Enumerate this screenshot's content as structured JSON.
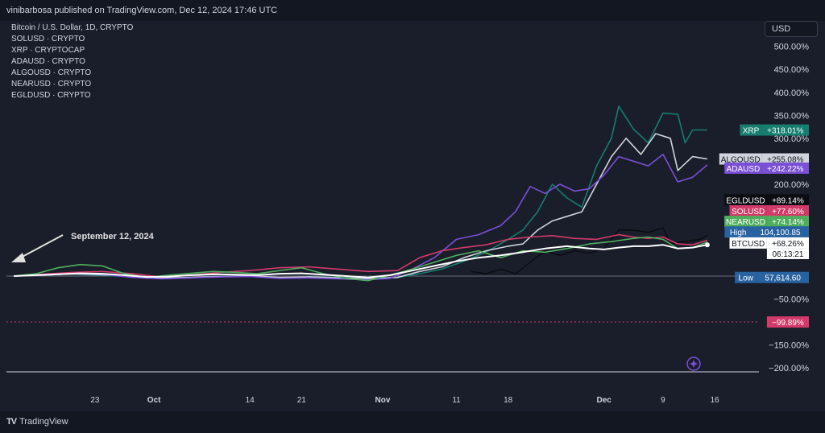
{
  "header": {
    "publisher": "vinibarbosa published on TradingView.com, Dec 12, 2024 17:46 UTC"
  },
  "legend": {
    "items": [
      "Bitcoin / U.S. Dollar, 1D, CRYPTO",
      "SOLUSD · CRYPTO",
      "XRP · CRYPTOCAP",
      "ADAUSD · CRYPTO",
      "ALGOUSD · CRYPTO",
      "NEARUSD · CRYPTO",
      "EGLDUSD · CRYPTO"
    ]
  },
  "currency_button": "USD",
  "annotation": {
    "text": "September 12, 2024"
  },
  "brand": {
    "name": "TradingView",
    "logo": "TV"
  },
  "chart_data": {
    "type": "line",
    "y_unit": "percent change",
    "ylim": [
      -210,
      520
    ],
    "y_ticks": [
      -200,
      -150,
      -100,
      -50,
      0,
      50,
      100,
      150,
      200,
      250,
      300,
      350,
      400,
      450,
      500
    ],
    "y_tick_labels": [
      "−200.00%",
      "−150.00%",
      "−100.00%",
      "−50.00%",
      "",
      "",
      "",
      "",
      "200.00%",
      "250.00%",
      "300.00%",
      "350.00%",
      "400.00%",
      "450.00%",
      "500.00%"
    ],
    "x_ticks": [
      {
        "day": 11,
        "label": "23"
      },
      {
        "day": 19,
        "label": "Oct"
      },
      {
        "day": 32,
        "label": "14"
      },
      {
        "day": 39,
        "label": "21"
      },
      {
        "day": 50,
        "label": "Nov"
      },
      {
        "day": 60,
        "label": "11"
      },
      {
        "day": 67,
        "label": "18"
      },
      {
        "day": 80,
        "label": "Dec"
      },
      {
        "day": 88,
        "label": "9"
      },
      {
        "day": 95,
        "label": "16"
      }
    ],
    "xlim": [
      -1,
      101
    ],
    "series": [
      {
        "name": "XRP",
        "color": "#167d6f",
        "values": [
          [
            0,
            0
          ],
          [
            4,
            3
          ],
          [
            8,
            4
          ],
          [
            12,
            2
          ],
          [
            16,
            -2
          ],
          [
            20,
            -5
          ],
          [
            24,
            -3
          ],
          [
            28,
            -1
          ],
          [
            32,
            0
          ],
          [
            36,
            -4
          ],
          [
            40,
            -2
          ],
          [
            44,
            -3
          ],
          [
            48,
            -5
          ],
          [
            52,
            -3
          ],
          [
            55,
            5
          ],
          [
            58,
            15
          ],
          [
            61,
            32
          ],
          [
            64,
            52
          ],
          [
            67,
            80
          ],
          [
            69,
            100
          ],
          [
            71,
            140
          ],
          [
            73,
            200
          ],
          [
            75,
            170
          ],
          [
            77,
            150
          ],
          [
            79,
            240
          ],
          [
            81,
            300
          ],
          [
            82,
            370
          ],
          [
            84,
            320
          ],
          [
            86,
            290
          ],
          [
            88,
            355
          ],
          [
            90,
            352
          ],
          [
            91,
            290
          ],
          [
            92,
            318
          ],
          [
            94,
            318
          ]
        ]
      },
      {
        "name": "ALGOUSD",
        "color": "#d1d4dc",
        "values": [
          [
            0,
            0
          ],
          [
            4,
            2
          ],
          [
            8,
            5
          ],
          [
            12,
            3
          ],
          [
            16,
            0
          ],
          [
            20,
            -4
          ],
          [
            24,
            -3
          ],
          [
            28,
            -1
          ],
          [
            32,
            0
          ],
          [
            36,
            -3
          ],
          [
            40,
            -2
          ],
          [
            44,
            -4
          ],
          [
            48,
            -6
          ],
          [
            52,
            -3
          ],
          [
            55,
            10
          ],
          [
            58,
            20
          ],
          [
            61,
            40
          ],
          [
            64,
            55
          ],
          [
            67,
            65
          ],
          [
            69,
            70
          ],
          [
            71,
            100
          ],
          [
            73,
            120
          ],
          [
            75,
            130
          ],
          [
            77,
            140
          ],
          [
            79,
            200
          ],
          [
            81,
            260
          ],
          [
            83,
            300
          ],
          [
            85,
            265
          ],
          [
            87,
            310
          ],
          [
            89,
            300
          ],
          [
            90,
            230
          ],
          [
            92,
            260
          ],
          [
            94,
            255
          ]
        ]
      },
      {
        "name": "ADAUSD",
        "color": "#7b4fd6",
        "values": [
          [
            0,
            0
          ],
          [
            4,
            2
          ],
          [
            8,
            5
          ],
          [
            12,
            4
          ],
          [
            16,
            -3
          ],
          [
            20,
            -6
          ],
          [
            24,
            -4
          ],
          [
            28,
            -2
          ],
          [
            32,
            -1
          ],
          [
            36,
            -5
          ],
          [
            40,
            -4
          ],
          [
            44,
            -6
          ],
          [
            48,
            -8
          ],
          [
            51,
            -5
          ],
          [
            54,
            15
          ],
          [
            57,
            40
          ],
          [
            60,
            80
          ],
          [
            63,
            90
          ],
          [
            66,
            110
          ],
          [
            68,
            140
          ],
          [
            70,
            195
          ],
          [
            72,
            180
          ],
          [
            74,
            200
          ],
          [
            76,
            185
          ],
          [
            78,
            190
          ],
          [
            80,
            220
          ],
          [
            82,
            260
          ],
          [
            84,
            250
          ],
          [
            86,
            240
          ],
          [
            88,
            265
          ],
          [
            90,
            205
          ],
          [
            92,
            215
          ],
          [
            94,
            242
          ]
        ]
      },
      {
        "name": "EGLDUSD",
        "color": "#0b0d12",
        "values": [
          [
            62,
            10
          ],
          [
            64,
            5
          ],
          [
            66,
            15
          ],
          [
            68,
            5
          ],
          [
            70,
            30
          ],
          [
            72,
            55
          ],
          [
            74,
            45
          ],
          [
            76,
            55
          ],
          [
            78,
            50
          ],
          [
            80,
            60
          ],
          [
            82,
            100
          ],
          [
            84,
            100
          ],
          [
            86,
            95
          ],
          [
            88,
            105
          ],
          [
            89,
            70
          ],
          [
            91,
            75
          ],
          [
            93,
            80
          ],
          [
            94,
            89
          ]
        ]
      },
      {
        "name": "SOLUSD",
        "color": "#d23a6a",
        "values": [
          [
            0,
            0
          ],
          [
            4,
            4
          ],
          [
            8,
            8
          ],
          [
            12,
            10
          ],
          [
            16,
            5
          ],
          [
            20,
            -2
          ],
          [
            24,
            2
          ],
          [
            28,
            8
          ],
          [
            32,
            12
          ],
          [
            36,
            18
          ],
          [
            40,
            20
          ],
          [
            44,
            15
          ],
          [
            48,
            10
          ],
          [
            52,
            12
          ],
          [
            55,
            40
          ],
          [
            58,
            55
          ],
          [
            61,
            62
          ],
          [
            64,
            68
          ],
          [
            67,
            80
          ],
          [
            70,
            85
          ],
          [
            73,
            88
          ],
          [
            76,
            82
          ],
          [
            79,
            80
          ],
          [
            82,
            90
          ],
          [
            84,
            85
          ],
          [
            86,
            82
          ],
          [
            88,
            85
          ],
          [
            90,
            70
          ],
          [
            92,
            68
          ],
          [
            94,
            78
          ]
        ]
      },
      {
        "name": "NEARUSD",
        "color": "#4fae5e",
        "values": [
          [
            0,
            0
          ],
          [
            3,
            5
          ],
          [
            6,
            18
          ],
          [
            9,
            25
          ],
          [
            12,
            22
          ],
          [
            15,
            5
          ],
          [
            18,
            -3
          ],
          [
            21,
            2
          ],
          [
            24,
            6
          ],
          [
            27,
            10
          ],
          [
            30,
            8
          ],
          [
            33,
            5
          ],
          [
            36,
            12
          ],
          [
            39,
            18
          ],
          [
            42,
            5
          ],
          [
            45,
            -5
          ],
          [
            48,
            -10
          ],
          [
            51,
            2
          ],
          [
            54,
            15
          ],
          [
            57,
            30
          ],
          [
            60,
            45
          ],
          [
            63,
            55
          ],
          [
            66,
            40
          ],
          [
            69,
            55
          ],
          [
            72,
            52
          ],
          [
            75,
            60
          ],
          [
            78,
            70
          ],
          [
            81,
            75
          ],
          [
            84,
            82
          ],
          [
            86,
            85
          ],
          [
            88,
            80
          ],
          [
            90,
            60
          ],
          [
            92,
            62
          ],
          [
            94,
            74
          ]
        ]
      },
      {
        "name": "BTCUSD",
        "color": "#ffffff",
        "values": [
          [
            0,
            0
          ],
          [
            3,
            2
          ],
          [
            6,
            4
          ],
          [
            9,
            6
          ],
          [
            12,
            5
          ],
          [
            15,
            2
          ],
          [
            18,
            -2
          ],
          [
            21,
            -1
          ],
          [
            24,
            2
          ],
          [
            27,
            4
          ],
          [
            30,
            3
          ],
          [
            33,
            2
          ],
          [
            36,
            5
          ],
          [
            39,
            6
          ],
          [
            42,
            3
          ],
          [
            45,
            0
          ],
          [
            48,
            -3
          ],
          [
            51,
            2
          ],
          [
            54,
            12
          ],
          [
            57,
            22
          ],
          [
            60,
            32
          ],
          [
            63,
            40
          ],
          [
            66,
            45
          ],
          [
            69,
            52
          ],
          [
            72,
            60
          ],
          [
            75,
            65
          ],
          [
            78,
            60
          ],
          [
            80,
            58
          ],
          [
            82,
            62
          ],
          [
            84,
            65
          ],
          [
            86,
            65
          ],
          [
            88,
            68
          ],
          [
            90,
            60
          ],
          [
            92,
            62
          ],
          [
            94,
            68
          ]
        ]
      }
    ],
    "price_labels": [
      {
        "text_left": "XRP",
        "text_right": "+318.01%",
        "value": 318,
        "bg": "#167d6f",
        "fg": "#ffffff"
      },
      {
        "text_left": "ALGOUSD",
        "text_right": "+255.08%",
        "value": 255,
        "bg": "#d1d4dc",
        "fg": "#131722"
      },
      {
        "text_left": "ADAUSD",
        "text_right": "+242.22%",
        "value": 235,
        "bg": "#7b4fd6",
        "fg": "#ffffff"
      },
      {
        "text_left": "EGLDUSD",
        "text_right": "+89.14%",
        "value": 166,
        "bg": "#0b0d12",
        "fg": "#ffffff"
      },
      {
        "text_left": "SOLUSD",
        "text_right": "+77.60%",
        "value": 142,
        "bg": "#d23a6a",
        "fg": "#ffffff"
      },
      {
        "text_left": "NEARUSD",
        "text_right": "+74.14%",
        "value": 119,
        "bg": "#4fae5e",
        "fg": "#ffffff"
      },
      {
        "text_left": "High",
        "text_right": "104,100.85",
        "value": 96,
        "bg": "#2962a0",
        "fg": "#ffffff"
      },
      {
        "text_left": "BTCUSD",
        "text_right": "+68.26%",
        "value": 72,
        "bg": "#ffffff",
        "fg": "#131722",
        "sub": "06:13:21"
      },
      {
        "text_left": "Low",
        "text_right": "57,614.60",
        "value": -3,
        "bg": "#2962a0",
        "fg": "#ffffff"
      },
      {
        "text_left": "",
        "text_right": "−99.89%",
        "value": -100,
        "bg": "#d23a6a",
        "fg": "#ffffff"
      }
    ]
  }
}
